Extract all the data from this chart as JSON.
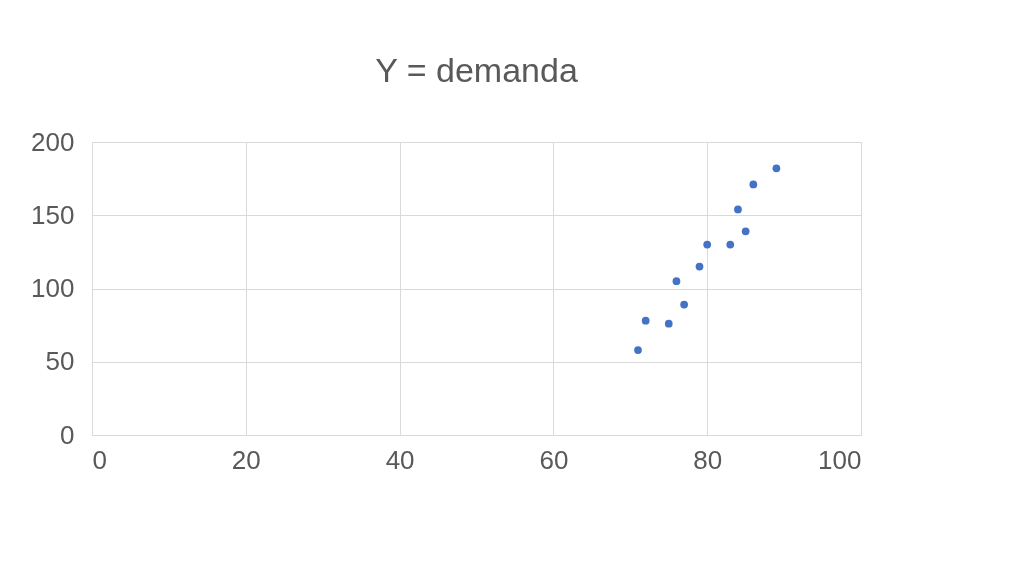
{
  "chart_data": {
    "type": "scatter",
    "title": "Y = demanda",
    "x": [
      71,
      72,
      75,
      76,
      77,
      79,
      80,
      83,
      84,
      85,
      86,
      89
    ],
    "series": [
      {
        "color": "#4472c4",
        "values": [
          58,
          78,
          76,
          105,
          89,
          115,
          130,
          130,
          154,
          139,
          171,
          182
        ]
      }
    ],
    "xlim": [
      0,
      100
    ],
    "xticks": [
      0,
      20,
      40,
      60,
      80,
      100
    ],
    "ylim": [
      0,
      200
    ],
    "yticks": [
      0,
      50,
      100,
      150,
      200
    ],
    "grid": true,
    "marker": "circle",
    "legend": false
  }
}
